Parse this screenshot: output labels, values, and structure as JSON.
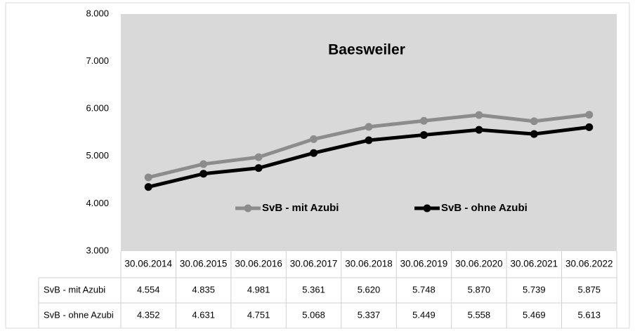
{
  "chart_data": {
    "type": "line",
    "title": "Baesweiler",
    "categories": [
      "30.06.2014",
      "30.06.2015",
      "30.06.2016",
      "30.06.2017",
      "30.06.2018",
      "30.06.2019",
      "30.06.2020",
      "30.06.2021",
      "30.06.2022"
    ],
    "series": [
      {
        "name": "SvB - mit Azubi",
        "color": "#8c8c8c",
        "values": [
          4554,
          4835,
          4981,
          5361,
          5620,
          5748,
          5870,
          5739,
          5875
        ],
        "value_labels": [
          "4.554",
          "4.835",
          "4.981",
          "5.361",
          "5.620",
          "5.748",
          "5.870",
          "5.739",
          "5.875"
        ]
      },
      {
        "name": "SvB - ohne Azubi",
        "color": "#000000",
        "values": [
          4352,
          4631,
          4751,
          5068,
          5337,
          5449,
          5558,
          5469,
          5613
        ],
        "value_labels": [
          "4.352",
          "4.631",
          "4.751",
          "5.068",
          "5.337",
          "5.449",
          "5.558",
          "5.469",
          "5.613"
        ]
      }
    ],
    "ylim": [
      3000,
      8000
    ],
    "yticks": [
      {
        "value": 3000,
        "label": "3.000"
      },
      {
        "value": 4000,
        "label": "4.000"
      },
      {
        "value": 5000,
        "label": "5.000"
      },
      {
        "value": 6000,
        "label": "6.000"
      },
      {
        "value": 7000,
        "label": "7.000"
      },
      {
        "value": 8000,
        "label": "8.000"
      }
    ],
    "grid": false
  }
}
